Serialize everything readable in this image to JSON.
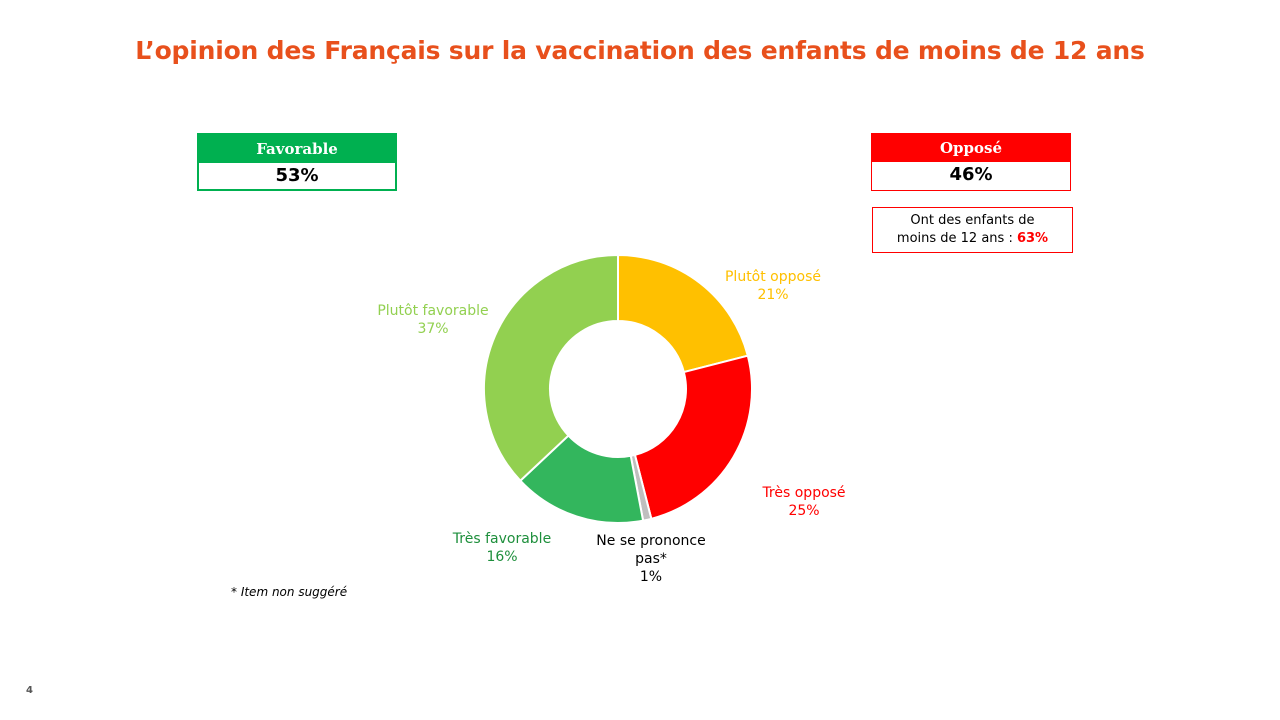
{
  "title": "L’opinion des Français sur la vaccination des enfants de moins de 12 ans",
  "favorable_box": {
    "label": "Favorable",
    "value": "53%"
  },
  "oppose_box": {
    "label": "Opposé",
    "value": "46%"
  },
  "note": {
    "line1": "Ont des enfants de",
    "line2": "moins de 12 ans : ",
    "value": "63%"
  },
  "footnote": "* Item non suggéré",
  "page_number": "4",
  "chart_data": {
    "type": "pie",
    "donut": true,
    "slices": [
      {
        "label": "Plutôt opposé",
        "value": 21,
        "display": "21%",
        "color": "#ffc000"
      },
      {
        "label": "Très opposé",
        "value": 25,
        "display": "25%",
        "color": "#ff0000"
      },
      {
        "label": "Ne se prononce pas*",
        "value": 1,
        "display": "1%",
        "color": "#bfbfbf"
      },
      {
        "label": "Très favorable",
        "value": 16,
        "display": "16%",
        "color": "#33b65d"
      },
      {
        "label": "Plutôt favorable",
        "value": 37,
        "display": "37%",
        "color": "#92d050"
      }
    ]
  },
  "label_colors": {
    "Plutôt opposé": "#ffc000",
    "Très opposé": "#ff0000",
    "Ne se prononce pas*": "#000000",
    "Très favorable": "#1e8f3c",
    "Plutôt favorable": "#92d050"
  }
}
